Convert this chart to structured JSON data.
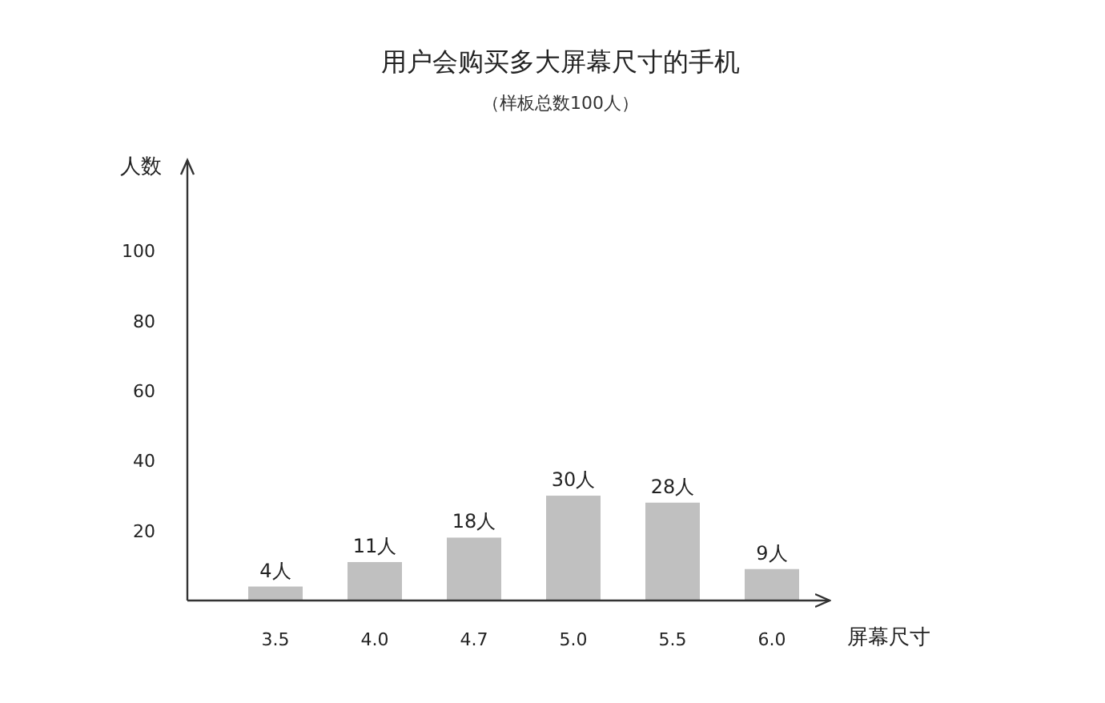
{
  "chart_data": {
    "type": "bar",
    "title": "用户会购买多大屏幕尺寸的手机",
    "subtitle": "（样板总数100人）",
    "xlabel": "屏幕尺寸",
    "ylabel": "人数",
    "categories": [
      "3.5",
      "4.0",
      "4.7",
      "5.0",
      "5.5",
      "6.0"
    ],
    "values": [
      4,
      11,
      18,
      30,
      28,
      9
    ],
    "value_labels": [
      "4人",
      "11人",
      "18人",
      "30人",
      "28人",
      "9人"
    ],
    "color": "#c0c0c0",
    "ylim": [
      0,
      126
    ],
    "yticks": [
      20,
      40,
      60,
      80,
      100
    ],
    "grid": false
  }
}
